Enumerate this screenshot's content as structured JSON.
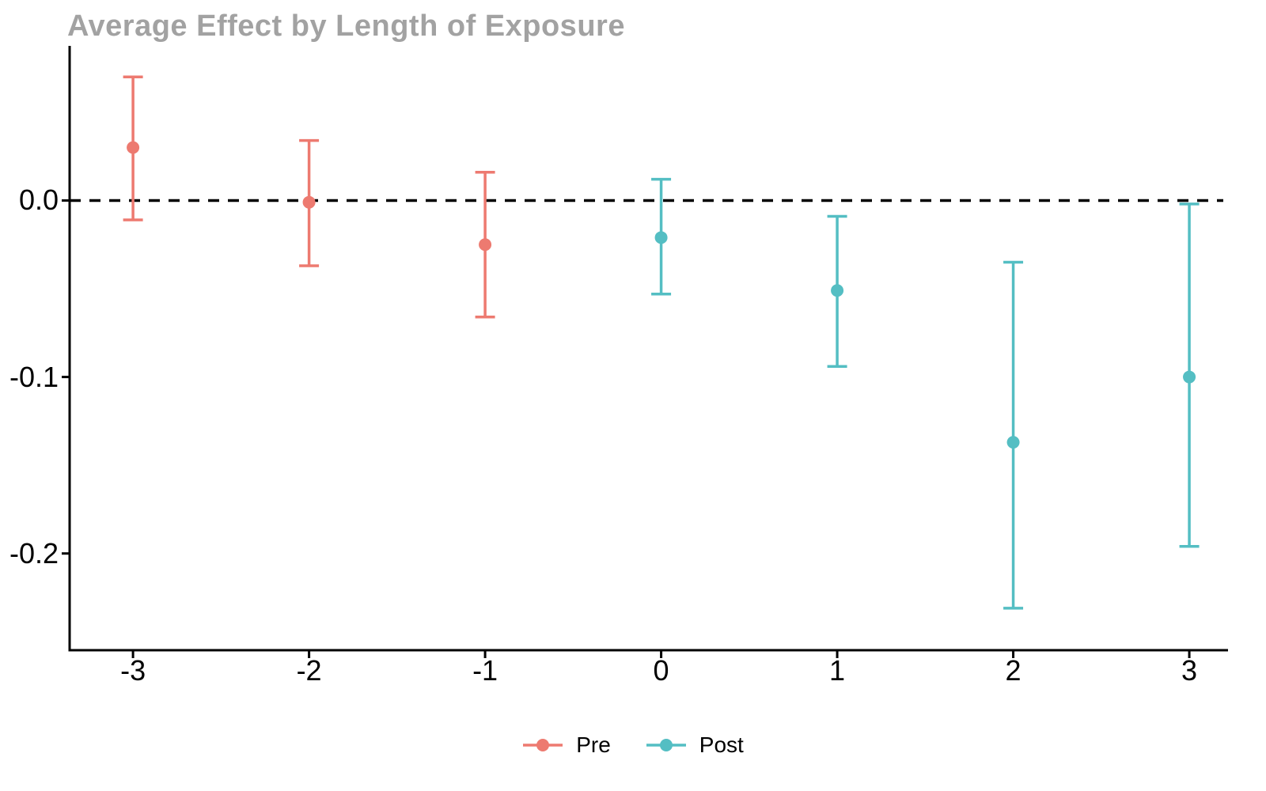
{
  "title": "Average Effect by Length of Exposure",
  "colors": {
    "pre": "#ED7A70",
    "post": "#54BEC3",
    "title_text": "#A2A2A2",
    "axis": "#000000",
    "reference_line": "#000000",
    "background": "#FFFFFF"
  },
  "legend": {
    "items": [
      {
        "label": "Pre",
        "color_key": "pre"
      },
      {
        "label": "Post",
        "color_key": "post"
      }
    ]
  },
  "chart_data": {
    "type": "scatter",
    "subtype": "errorbar-pointrange",
    "title": "Average Effect by Length of Exposure",
    "xlabel": "",
    "ylabel": "",
    "grid": false,
    "legend_position": "bottom-center",
    "reference_line_y": 0,
    "reference_line_style": "dashed",
    "xlim": [
      -3.36,
      3.22
    ],
    "ylim": [
      -0.2548,
      0.0876
    ],
    "x_ticks": {
      "values": [
        -3,
        -2,
        -1,
        0,
        1,
        2,
        3
      ],
      "labels": [
        "-3",
        "-2",
        "-1",
        "0",
        "1",
        "2",
        "3"
      ]
    },
    "y_ticks": {
      "values": [
        0,
        -0.1,
        -0.2
      ],
      "labels": [
        "0.0",
        "-0.1",
        "-0.2"
      ]
    },
    "series": [
      {
        "name": "Pre",
        "color": "#ED7A70",
        "points": [
          {
            "x": -3,
            "y": 0.03,
            "ci_low": -0.011,
            "ci_high": 0.07
          },
          {
            "x": -2,
            "y": -0.001,
            "ci_low": -0.037,
            "ci_high": 0.034
          },
          {
            "x": -1,
            "y": -0.025,
            "ci_low": -0.066,
            "ci_high": 0.016
          }
        ]
      },
      {
        "name": "Post",
        "color": "#54BEC3",
        "points": [
          {
            "x": 0,
            "y": -0.021,
            "ci_low": -0.053,
            "ci_high": 0.012
          },
          {
            "x": 1,
            "y": -0.051,
            "ci_low": -0.094,
            "ci_high": -0.009
          },
          {
            "x": 2,
            "y": -0.137,
            "ci_low": -0.231,
            "ci_high": -0.035
          },
          {
            "x": 3,
            "y": -0.1,
            "ci_low": -0.196,
            "ci_high": -0.002
          }
        ]
      }
    ]
  }
}
